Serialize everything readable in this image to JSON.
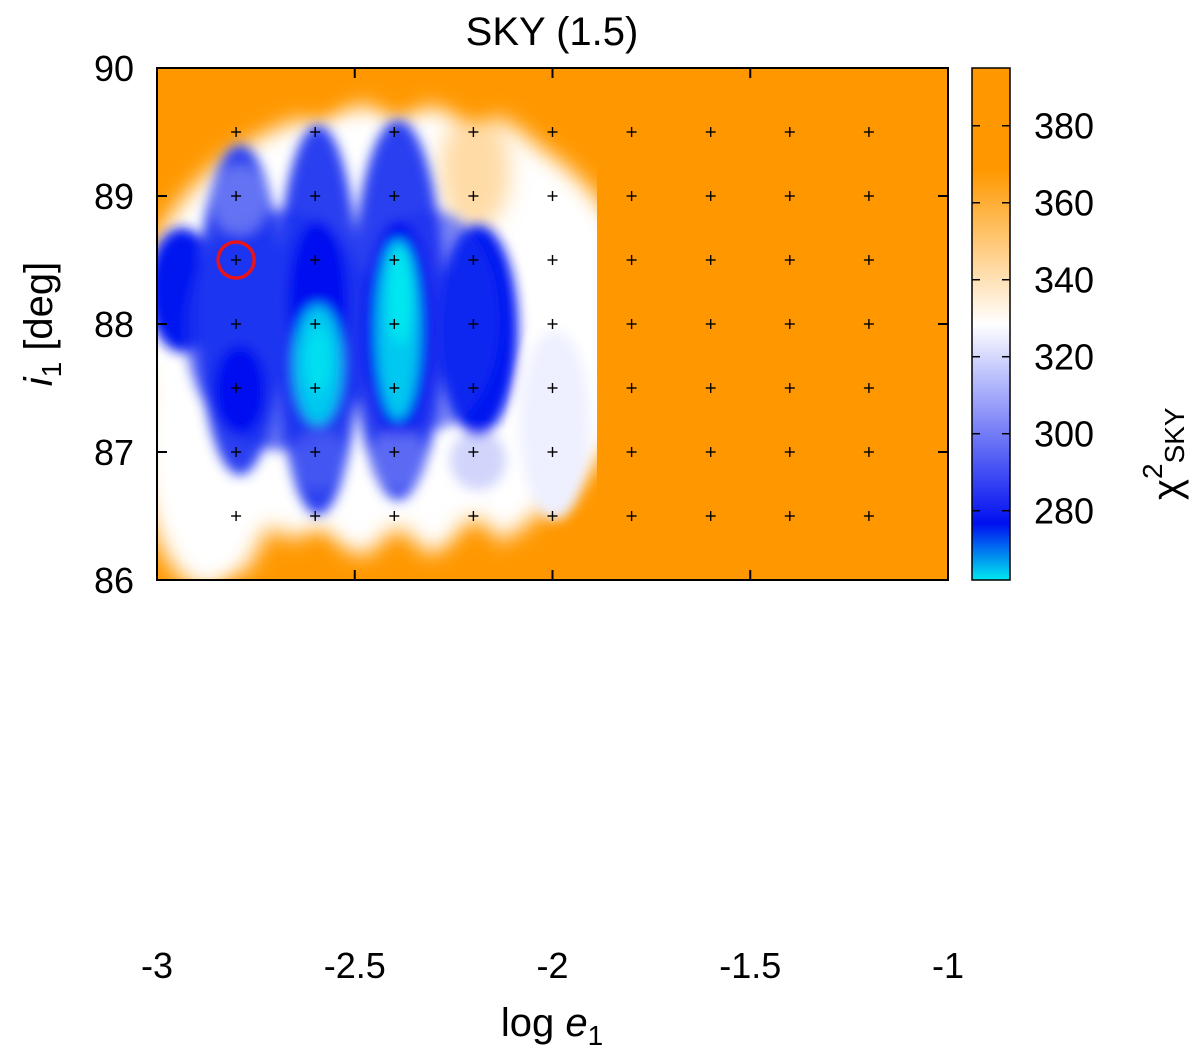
{
  "chart_data": {
    "type": "heatmap",
    "title": "SKY (1.5)",
    "xlabel": {
      "base": "log ",
      "var": "e",
      "sub": "1"
    },
    "ylabel": {
      "var": "i",
      "sub": "1",
      "rest": " [deg]"
    },
    "colorbar_label": {
      "base": "χ",
      "sup": "2",
      "sub": "SKY"
    },
    "xlim": [
      -3,
      -1
    ],
    "ylim": [
      86,
      90
    ],
    "clim": [
      262,
      395
    ],
    "xticks": [
      -3,
      -2.5,
      -2,
      -1.5,
      -1
    ],
    "xtick_labels": [
      "-3",
      "-2.5",
      "-2",
      "-1.5",
      "-1"
    ],
    "yticks": [
      86,
      87,
      88,
      89,
      90
    ],
    "ytick_labels": [
      "86",
      "87",
      "88",
      "89",
      "90"
    ],
    "colorbar_ticks": [
      280,
      300,
      320,
      340,
      360,
      380
    ],
    "colorbar_tick_labels": [
      "280",
      "300",
      "320",
      "340",
      "360",
      "380"
    ],
    "colormap": [
      "#00e8f0",
      "#0010f0",
      "#ffffff",
      "#ff9800"
    ],
    "grid_sample_x": [
      -2.8,
      -2.6,
      -2.4,
      -2.2,
      -2.0,
      -1.8,
      -1.6,
      -1.4,
      -1.2
    ],
    "grid_sample_y": [
      86.5,
      87.0,
      87.5,
      88.0,
      88.5,
      89.0,
      89.5
    ],
    "best_fit": {
      "x": -2.8,
      "y": 88.5,
      "color": "#e8141c"
    },
    "cells": [
      {
        "x": -2.8,
        "y": 88.5,
        "value": 274
      },
      {
        "x": -2.8,
        "y": 89.0,
        "value": 282
      },
      {
        "x": -2.8,
        "y": 88.0,
        "value": 285
      },
      {
        "x": -2.6,
        "y": 88.6,
        "value": 268
      },
      {
        "x": -2.6,
        "y": 89.0,
        "value": 278
      },
      {
        "x": -2.6,
        "y": 88.0,
        "value": 288
      },
      {
        "x": -2.6,
        "y": 89.5,
        "value": 298
      },
      {
        "x": -2.4,
        "y": 88.8,
        "value": 263
      },
      {
        "x": -2.4,
        "y": 88.4,
        "value": 266
      },
      {
        "x": -2.4,
        "y": 89.5,
        "value": 292
      },
      {
        "x": -2.4,
        "y": 88.0,
        "value": 292
      },
      {
        "x": -2.2,
        "y": 88.8,
        "value": 278
      },
      {
        "x": -2.2,
        "y": 88.5,
        "value": 282
      },
      {
        "x": -2.2,
        "y": 88.0,
        "value": 300
      },
      {
        "x": -2.0,
        "y": 88.5,
        "value": 318
      },
      {
        "x": -2.0,
        "y": 89.5,
        "value": 330
      },
      {
        "x": -1.5,
        "y": 88.5,
        "value": 395
      }
    ]
  }
}
